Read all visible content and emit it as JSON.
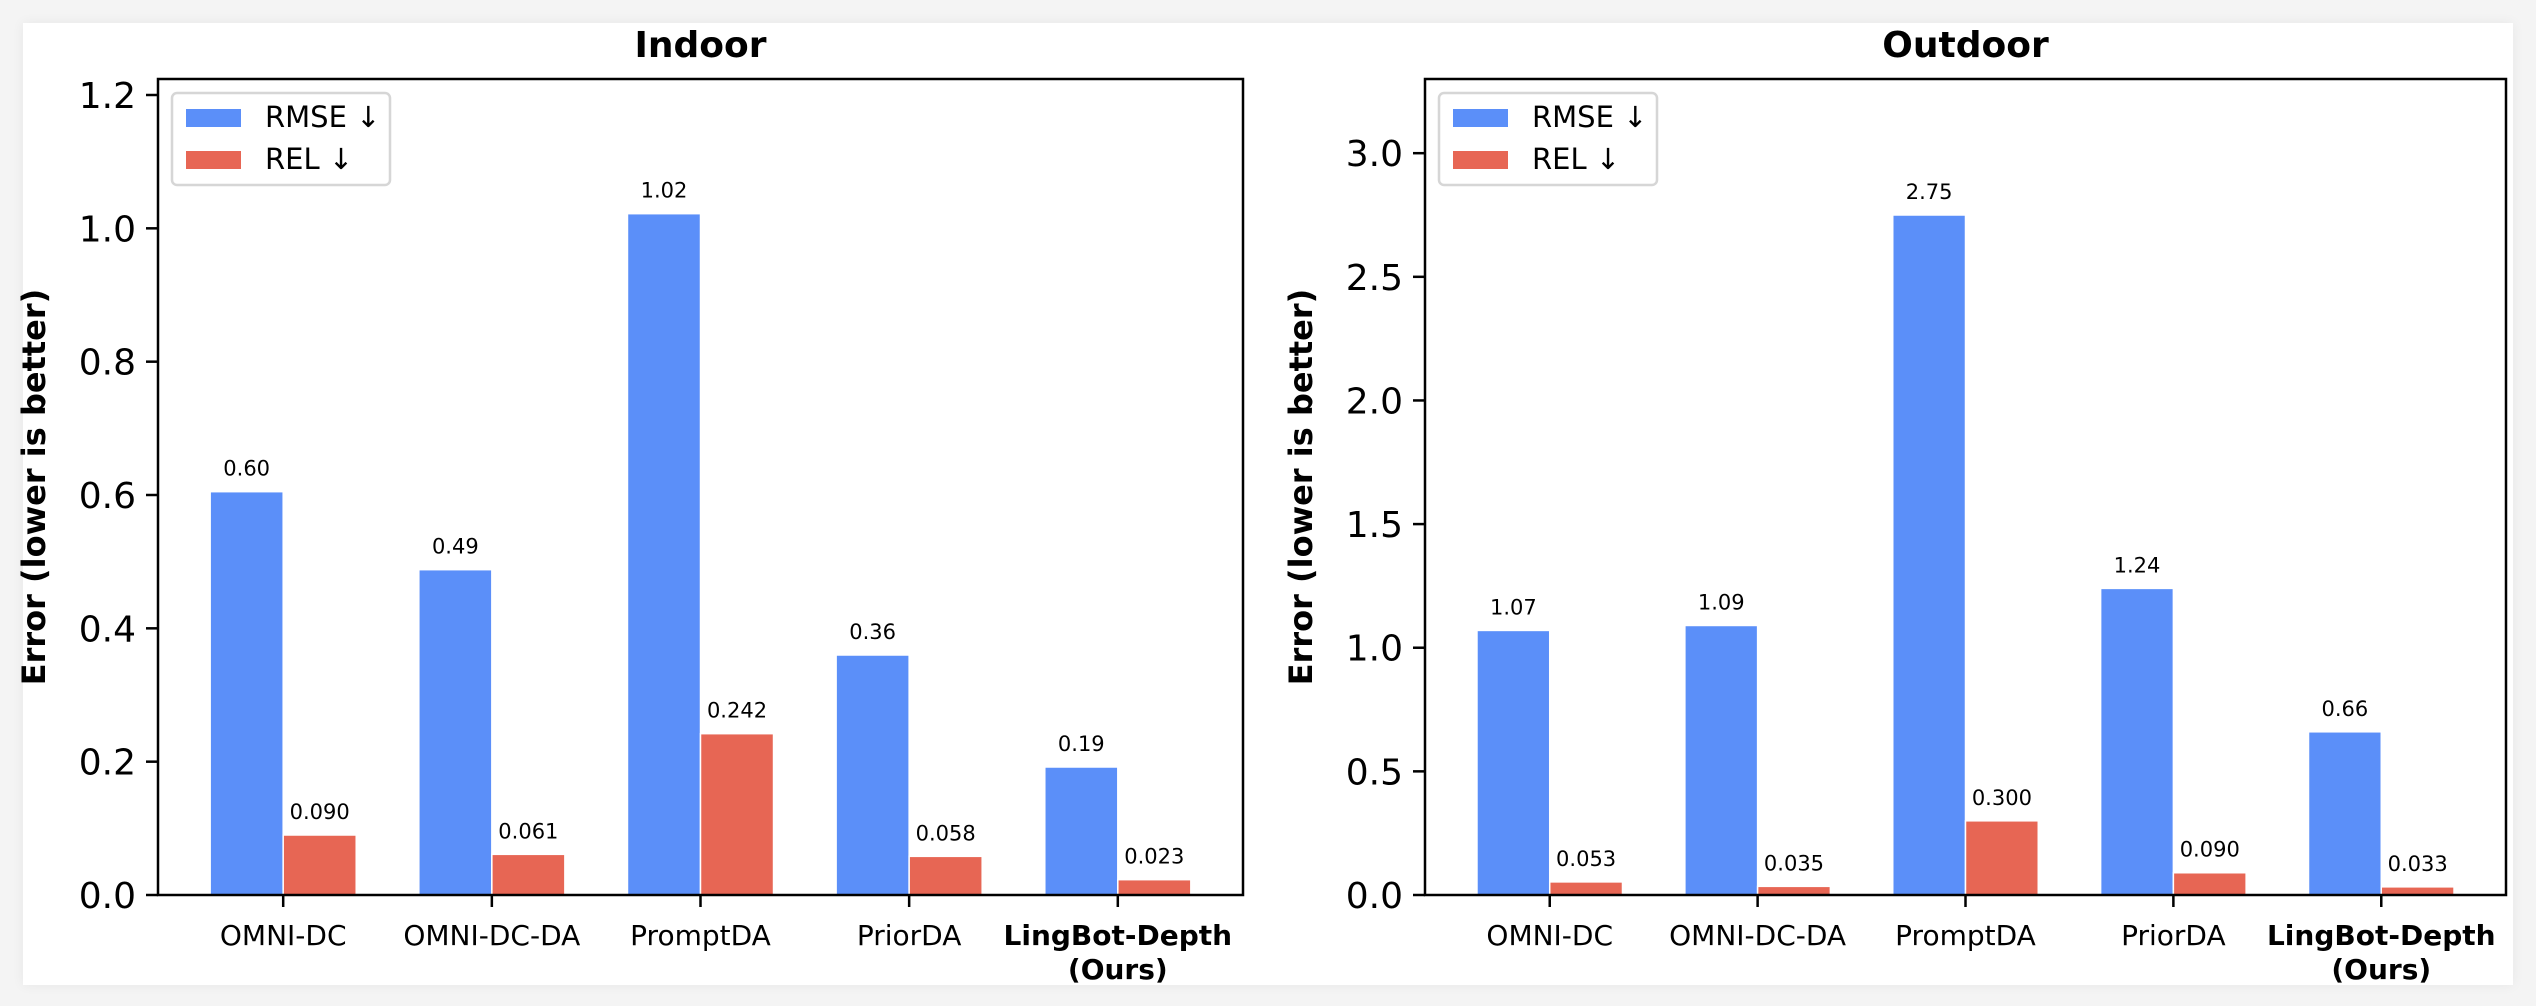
{
  "chart_data": [
    {
      "type": "bar",
      "title": "Indoor",
      "ylabel": "Error (lower is better)",
      "xlabel": "",
      "categories": [
        "OMNI-DC",
        "OMNI-DC-DA",
        "PromptDA",
        "PriorDA",
        "LingBot-Depth\n(Ours)"
      ],
      "highlight_category": "LingBot-Depth\n(Ours)",
      "ylim": [
        0,
        1.224
      ],
      "yticks": [
        "0.0",
        "0.2",
        "0.4",
        "0.6",
        "0.8",
        "1.0",
        "1.2"
      ],
      "ytick_values": [
        0,
        0.2,
        0.4,
        0.6,
        0.8,
        1.0,
        1.2
      ],
      "legend_position": "top-left",
      "grid": false,
      "series": [
        {
          "name": "RMSE ↓",
          "color": "#5b8ff9",
          "values": [
            0.605,
            0.488,
            1.022,
            0.36,
            0.192
          ],
          "labels": [
            "0.60",
            "0.49",
            "1.02",
            "0.36",
            "0.19"
          ]
        },
        {
          "name": "REL ↓",
          "color": "#e76654",
          "values": [
            0.09,
            0.061,
            0.242,
            0.058,
            0.023
          ],
          "labels": [
            "0.090",
            "0.061",
            "0.242",
            "0.058",
            "0.023"
          ]
        }
      ]
    },
    {
      "type": "bar",
      "title": "Outdoor",
      "ylabel": "Error (lower is better)",
      "xlabel": "",
      "categories": [
        "OMNI-DC",
        "OMNI-DC-DA",
        "PromptDA",
        "PriorDA",
        "LingBot-Depth\n(Ours)"
      ],
      "highlight_category": "LingBot-Depth\n(Ours)",
      "ylim": [
        0,
        3.3
      ],
      "yticks": [
        "0.0",
        "0.5",
        "1.0",
        "1.5",
        "2.0",
        "2.5",
        "3.0"
      ],
      "ytick_values": [
        0,
        0.5,
        1.0,
        1.5,
        2.0,
        2.5,
        3.0
      ],
      "legend_position": "top-left",
      "grid": false,
      "series": [
        {
          "name": "RMSE ↓",
          "color": "#5b8ff9",
          "values": [
            1.07,
            1.09,
            2.75,
            1.24,
            0.66
          ],
          "labels": [
            "1.07",
            "1.09",
            "2.75",
            "1.24",
            "0.66"
          ]
        },
        {
          "name": "REL ↓",
          "color": "#e76654",
          "values": [
            0.053,
            0.035,
            0.3,
            0.09,
            0.033
          ],
          "labels": [
            "0.053",
            "0.035",
            "0.300",
            "0.090",
            "0.033"
          ]
        }
      ]
    }
  ]
}
